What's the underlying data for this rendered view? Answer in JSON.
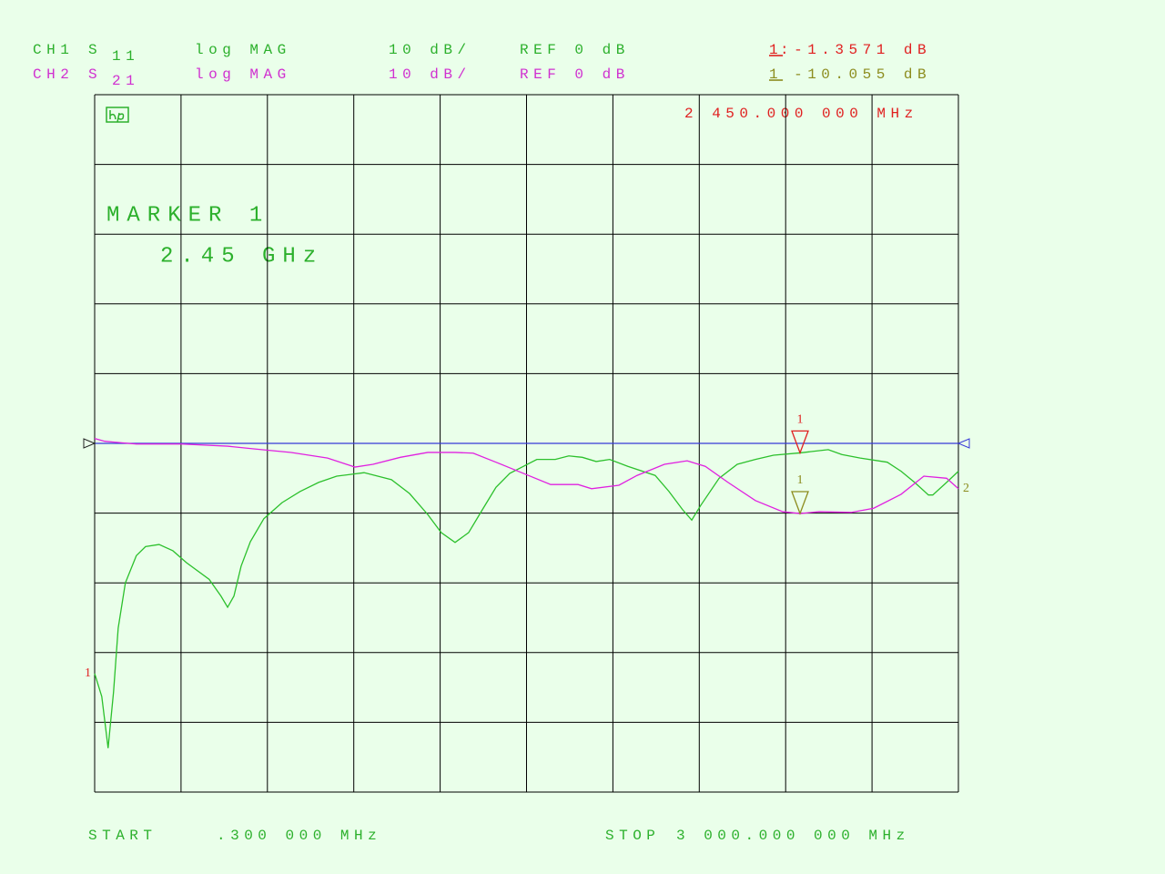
{
  "header": {
    "rows": [
      {
        "channel": "CH1",
        "param": "S",
        "sub": "11",
        "format": "log MAG",
        "scale": "10 dB/",
        "ref": "REF 0 dB",
        "marker_index": "1",
        "readout": ":-1.3571 dB"
      },
      {
        "channel": "CH2",
        "param": "S",
        "sub": "21",
        "format": "log MAG",
        "scale": "10 dB/",
        "ref": "REF 0 dB",
        "marker_index": "1",
        "readout": " -10.055 dB"
      }
    ]
  },
  "chart_data": {
    "type": "line",
    "marker_frequency": "2 450.000 000 MHz",
    "annotation": "MARKER 1",
    "annotation_sub": "2.45 GHz",
    "start_label": "START",
    "start_value": ".300 000 MHz",
    "stop_label": "STOP",
    "stop_value": "3 000.000 000 MHz",
    "xlim": [
      0.3,
      3000
    ],
    "ylim": [
      -50,
      50
    ],
    "xticks": [
      0.3,
      300.27,
      600.24,
      900.21,
      1200.18,
      1500.15,
      1800.12,
      2100.09,
      2400.06,
      2700.03,
      3000
    ],
    "yticks": [
      -50,
      -40,
      -30,
      -20,
      -10,
      0,
      10,
      20,
      30,
      40,
      50
    ],
    "grid": true,
    "ref_level": 0,
    "ref_color": "#3838d8",
    "series": [
      {
        "color": "#2cc02c",
        "trace_label": "1",
        "label_color": "#e02020",
        "x": [
          0.3,
          25,
          47,
          66,
          82,
          107,
          145,
          177,
          224,
          272,
          319,
          398,
          439,
          462,
          484,
          509,
          541,
          588,
          651,
          714,
          778,
          841,
          936,
          1031,
          1094,
          1157,
          1204,
          1252,
          1299,
          1347,
          1394,
          1442,
          1489,
          1536,
          1600,
          1647,
          1694,
          1742,
          1789,
          1852,
          1947,
          1995,
          2042,
          2074,
          2105,
          2169,
          2232,
          2295,
          2358,
          2450,
          2548,
          2595,
          2659,
          2753,
          2801,
          2848,
          2896,
          2911,
          2959,
          3000
        ],
        "values": [
          -33.0,
          -36.3,
          -43.7,
          -35.6,
          -26.5,
          -20.0,
          -16.1,
          -14.8,
          -14.5,
          -15.4,
          -17.1,
          -19.5,
          -21.9,
          -23.5,
          -21.9,
          -17.6,
          -14.1,
          -10.8,
          -8.5,
          -6.9,
          -5.6,
          -4.7,
          -4.2,
          -5.2,
          -7.2,
          -10.2,
          -12.8,
          -14.2,
          -12.8,
          -9.5,
          -6.3,
          -4.3,
          -3.3,
          -2.3,
          -2.3,
          -1.8,
          -2.0,
          -2.6,
          -2.3,
          -3.3,
          -4.6,
          -6.9,
          -9.5,
          -11.0,
          -8.9,
          -5.0,
          -3.0,
          -2.3,
          -1.7,
          -1.36,
          -0.9,
          -1.6,
          -2.1,
          -2.7,
          -4.0,
          -5.6,
          -7.4,
          -7.4,
          -5.6,
          -4.0
        ]
      },
      {
        "color": "#e020e0",
        "trace_label": "2",
        "label_color": "#8c8c1e",
        "x": [
          0.3,
          35,
          145,
          304,
          462,
          556,
          683,
          809,
          904,
          967,
          1062,
          1157,
          1252,
          1315,
          1394,
          1489,
          1584,
          1679,
          1726,
          1821,
          1884,
          1979,
          2058,
          2121,
          2200,
          2295,
          2390,
          2450,
          2516,
          2627,
          2706,
          2801,
          2880,
          2959,
          3000
        ],
        "values": [
          0.7,
          0.3,
          -0.1,
          -0.1,
          -0.4,
          -0.8,
          -1.3,
          -2.1,
          -3.4,
          -3.0,
          -2.0,
          -1.3,
          -1.3,
          -1.4,
          -2.7,
          -4.3,
          -5.9,
          -5.9,
          -6.5,
          -6.0,
          -4.6,
          -3.0,
          -2.5,
          -3.3,
          -5.6,
          -8.2,
          -9.8,
          -10.06,
          -9.8,
          -9.9,
          -9.3,
          -7.3,
          -4.7,
          -5.0,
          -6.5
        ]
      }
    ],
    "markers": [
      {
        "label": "1",
        "x": 2450,
        "value": -1.3571,
        "color": "#e02020"
      },
      {
        "label": "1",
        "x": 2450,
        "value": -10.055,
        "color": "#8c8c1e"
      }
    ]
  }
}
